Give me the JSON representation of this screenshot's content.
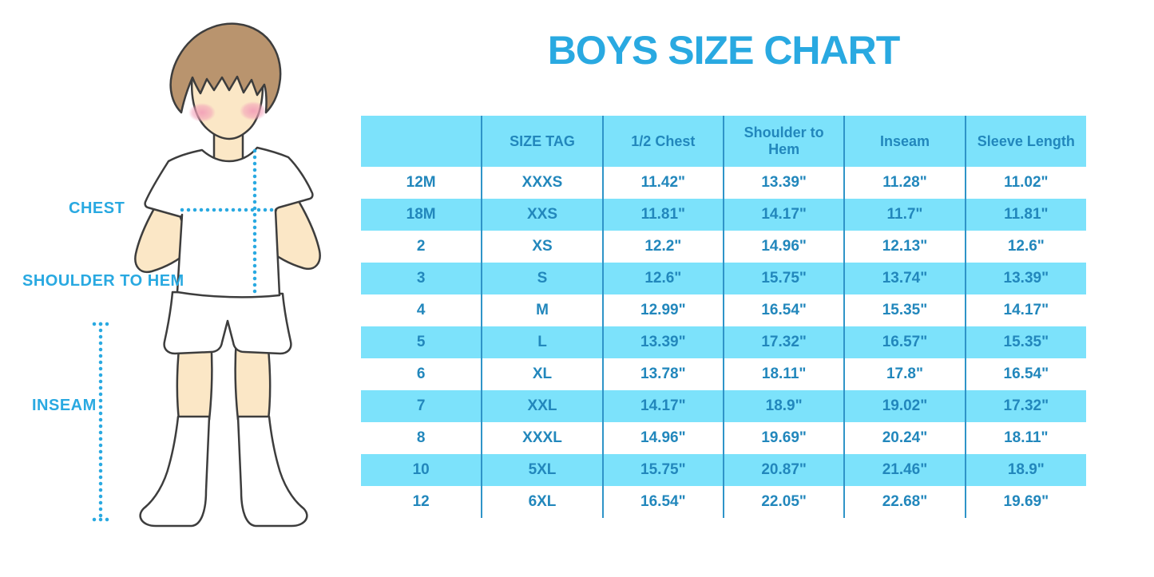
{
  "title": "BOYS SIZE CHART",
  "figure_labels": {
    "chest": "CHEST",
    "shoulder_to_hem": "SHOULDER TO HEM",
    "inseam": "INSEAM"
  },
  "colors": {
    "accent_blue": "#29A9E1",
    "table_text_blue": "#2287BC",
    "stripe_blue": "#7CE2FB",
    "divider_blue": "#2F94C8"
  },
  "chart_data": {
    "type": "table",
    "title": "BOYS SIZE CHART",
    "columns": [
      "",
      "SIZE TAG",
      "1/2 Chest",
      "Shoulder to Hem",
      "Inseam",
      "Sleeve Length"
    ],
    "rows": [
      [
        "12M",
        "XXXS",
        "11.42\"",
        "13.39\"",
        "11.28\"",
        "11.02\""
      ],
      [
        "18M",
        "XXS",
        "11.81\"",
        "14.17\"",
        "11.7\"",
        "11.81\""
      ],
      [
        "2",
        "XS",
        "12.2\"",
        "14.96\"",
        "12.13\"",
        "12.6\""
      ],
      [
        "3",
        "S",
        "12.6\"",
        "15.75\"",
        "13.74\"",
        "13.39\""
      ],
      [
        "4",
        "M",
        "12.99\"",
        "16.54\"",
        "15.35\"",
        "14.17\""
      ],
      [
        "5",
        "L",
        "13.39\"",
        "17.32\"",
        "16.57\"",
        "15.35\""
      ],
      [
        "6",
        "XL",
        "13.78\"",
        "18.11\"",
        "17.8\"",
        "16.54\""
      ],
      [
        "7",
        "XXL",
        "14.17\"",
        "18.9\"",
        "19.02\"",
        "17.32\""
      ],
      [
        "8",
        "XXXL",
        "14.96\"",
        "19.69\"",
        "20.24\"",
        "18.11\""
      ],
      [
        "10",
        "5XL",
        "15.75\"",
        "20.87\"",
        "21.46\"",
        "18.9\""
      ],
      [
        "12",
        "6XL",
        "16.54\"",
        "22.05\"",
        "22.68\"",
        "19.69\""
      ]
    ]
  }
}
